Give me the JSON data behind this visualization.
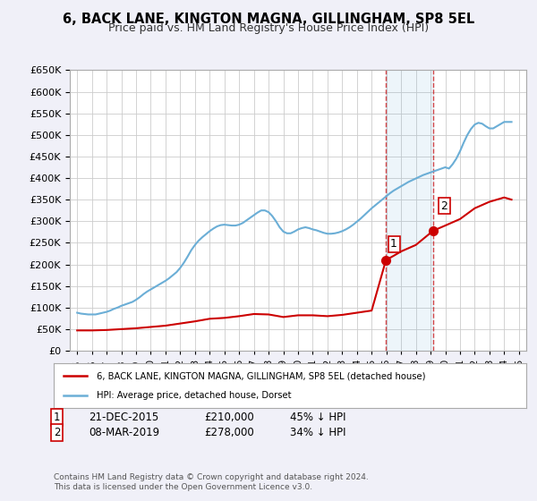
{
  "title": "6, BACK LANE, KINGTON MAGNA, GILLINGHAM, SP8 5EL",
  "subtitle": "Price paid vs. HM Land Registry's House Price Index (HPI)",
  "hpi_label": "HPI: Average price, detached house, Dorset",
  "property_label": "6, BACK LANE, KINGTON MAGNA, GILLINGHAM, SP8 5EL (detached house)",
  "legend_note1": "1   21-DEC-2015      £210,000        45% ↓ HPI",
  "legend_note2": "2   08-MAR-2019      £278,000        34% ↓ HPI",
  "footer": "Contains HM Land Registry data © Crown copyright and database right 2024.\nThis data is licensed under the Open Government Licence v3.0.",
  "hpi_color": "#6baed6",
  "property_color": "#cc0000",
  "sale1_date": 2015.97,
  "sale1_price": 210000,
  "sale2_date": 2019.18,
  "sale2_price": 278000,
  "ylim": [
    0,
    650000
  ],
  "xlim": [
    1994.5,
    2025.5
  ],
  "background_color": "#f0f0f8",
  "plot_bg": "#ffffff",
  "hpi_data": {
    "years": [
      1995.0,
      1995.25,
      1995.5,
      1995.75,
      1996.0,
      1996.25,
      1996.5,
      1996.75,
      1997.0,
      1997.25,
      1997.5,
      1997.75,
      1998.0,
      1998.25,
      1998.5,
      1998.75,
      1999.0,
      1999.25,
      1999.5,
      1999.75,
      2000.0,
      2000.25,
      2000.5,
      2000.75,
      2001.0,
      2001.25,
      2001.5,
      2001.75,
      2002.0,
      2002.25,
      2002.5,
      2002.75,
      2003.0,
      2003.25,
      2003.5,
      2003.75,
      2004.0,
      2004.25,
      2004.5,
      2004.75,
      2005.0,
      2005.25,
      2005.5,
      2005.75,
      2006.0,
      2006.25,
      2006.5,
      2006.75,
      2007.0,
      2007.25,
      2007.5,
      2007.75,
      2008.0,
      2008.25,
      2008.5,
      2008.75,
      2009.0,
      2009.25,
      2009.5,
      2009.75,
      2010.0,
      2010.25,
      2010.5,
      2010.75,
      2011.0,
      2011.25,
      2011.5,
      2011.75,
      2012.0,
      2012.25,
      2012.5,
      2012.75,
      2013.0,
      2013.25,
      2013.5,
      2013.75,
      2014.0,
      2014.25,
      2014.5,
      2014.75,
      2015.0,
      2015.25,
      2015.5,
      2015.75,
      2016.0,
      2016.25,
      2016.5,
      2016.75,
      2017.0,
      2017.25,
      2017.5,
      2017.75,
      2018.0,
      2018.25,
      2018.5,
      2018.75,
      2019.0,
      2019.25,
      2019.5,
      2019.75,
      2020.0,
      2020.25,
      2020.5,
      2020.75,
      2021.0,
      2021.25,
      2021.5,
      2021.75,
      2022.0,
      2022.25,
      2022.5,
      2022.75,
      2023.0,
      2023.25,
      2023.5,
      2023.75,
      2024.0,
      2024.25,
      2024.5
    ],
    "values": [
      88000,
      86000,
      85000,
      84000,
      84000,
      84000,
      86000,
      88000,
      90000,
      93000,
      97000,
      100000,
      104000,
      107000,
      110000,
      113000,
      118000,
      124000,
      131000,
      137000,
      142000,
      147000,
      152000,
      157000,
      162000,
      168000,
      175000,
      182000,
      192000,
      204000,
      218000,
      233000,
      245000,
      255000,
      263000,
      270000,
      277000,
      283000,
      288000,
      291000,
      292000,
      291000,
      290000,
      290000,
      292000,
      296000,
      302000,
      308000,
      314000,
      320000,
      325000,
      325000,
      321000,
      312000,
      300000,
      286000,
      276000,
      272000,
      272000,
      276000,
      281000,
      284000,
      286000,
      284000,
      281000,
      279000,
      276000,
      273000,
      271000,
      271000,
      272000,
      274000,
      277000,
      281000,
      286000,
      292000,
      299000,
      306000,
      314000,
      322000,
      330000,
      337000,
      344000,
      351000,
      358000,
      365000,
      371000,
      376000,
      381000,
      386000,
      391000,
      395000,
      399000,
      403000,
      407000,
      410000,
      413000,
      416000,
      419000,
      422000,
      425000,
      422000,
      432000,
      445000,
      462000,
      482000,
      500000,
      514000,
      524000,
      528000,
      526000,
      520000,
      515000,
      515000,
      520000,
      525000,
      530000,
      530000,
      530000
    ]
  },
  "property_data": {
    "years": [
      1995.0,
      1996.0,
      1997.0,
      1998.0,
      1999.0,
      2000.0,
      2001.0,
      2002.0,
      2003.0,
      2004.0,
      2005.0,
      2006.0,
      2007.0,
      2008.0,
      2009.0,
      2010.0,
      2011.0,
      2012.0,
      2013.0,
      2014.0,
      2015.0,
      2015.97,
      2016.5,
      2017.0,
      2018.0,
      2019.18,
      2020.0,
      2021.0,
      2022.0,
      2023.0,
      2024.0,
      2024.5
    ],
    "values": [
      47000,
      47000,
      48000,
      50000,
      52000,
      55000,
      58000,
      63000,
      68000,
      74000,
      76000,
      80000,
      85000,
      84000,
      78000,
      82000,
      82000,
      80000,
      83000,
      88000,
      93000,
      210000,
      220000,
      230000,
      245000,
      278000,
      290000,
      305000,
      330000,
      345000,
      355000,
      350000
    ]
  }
}
